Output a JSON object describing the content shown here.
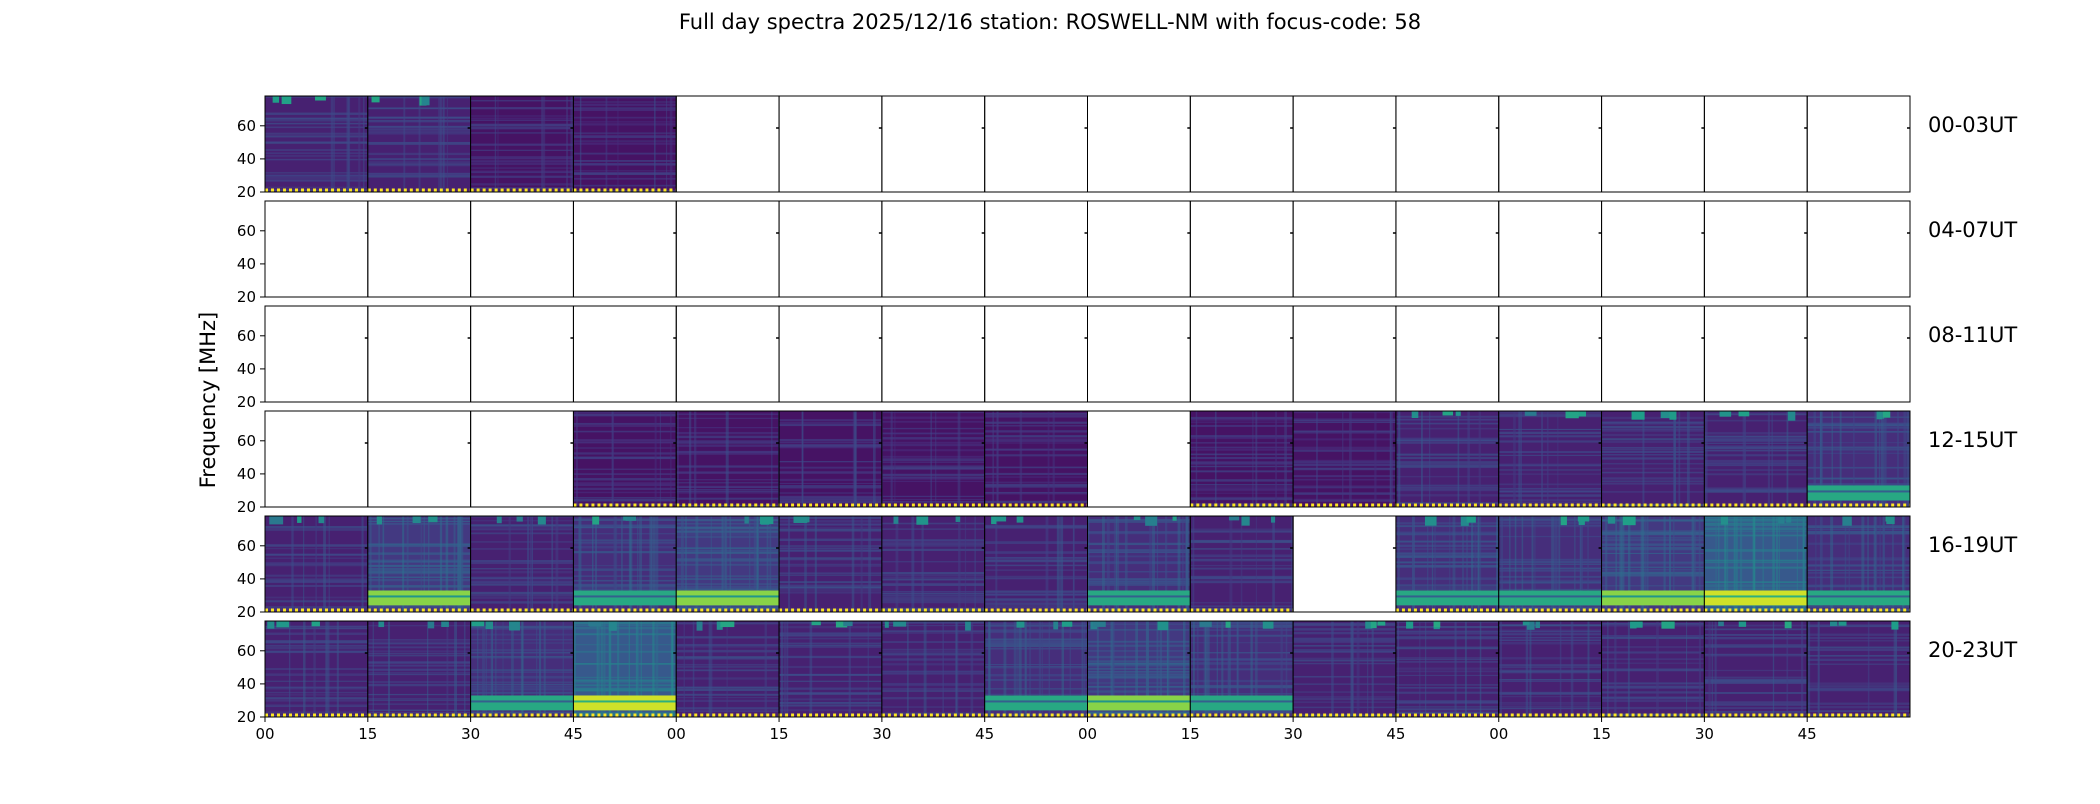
{
  "chart_data": {
    "type": "heatmap",
    "title": "Full day spectra 2025/12/16 station: ROSWELL-NM with focus-code: 58",
    "ylabel": "Frequency [MHz]",
    "xlabel": "",
    "ylim": [
      20,
      78
    ],
    "yticks": [
      20,
      40,
      60
    ],
    "xtick_labels": [
      "00",
      "15",
      "30",
      "45",
      "00",
      "15",
      "30",
      "45",
      "00",
      "15",
      "30",
      "45",
      "00",
      "15",
      "30",
      "45"
    ],
    "colormap": "viridis",
    "row_labels": [
      "00-03UT",
      "04-07UT",
      "08-11UT",
      "12-15UT",
      "16-19UT",
      "20-23UT"
    ],
    "panel_levels": [
      [
        2,
        2,
        1,
        1,
        0,
        0,
        0,
        0,
        0,
        0,
        0,
        0,
        0,
        0,
        0,
        0
      ],
      [
        0,
        0,
        0,
        0,
        0,
        0,
        0,
        0,
        0,
        0,
        0,
        0,
        0,
        0,
        0,
        0
      ],
      [
        0,
        0,
        0,
        0,
        0,
        0,
        0,
        0,
        0,
        0,
        0,
        0,
        0,
        0,
        0,
        0
      ],
      [
        0,
        0,
        0,
        1,
        1,
        1,
        1,
        1,
        0,
        1,
        1,
        2,
        2,
        2,
        2,
        3
      ],
      [
        2,
        4,
        2,
        3,
        4,
        2,
        2,
        2,
        3,
        2,
        0,
        3,
        3,
        4,
        5,
        3
      ],
      [
        2,
        2,
        3,
        5,
        2,
        2,
        2,
        3,
        4,
        3,
        2,
        2,
        2,
        2,
        2,
        2
      ]
    ]
  }
}
